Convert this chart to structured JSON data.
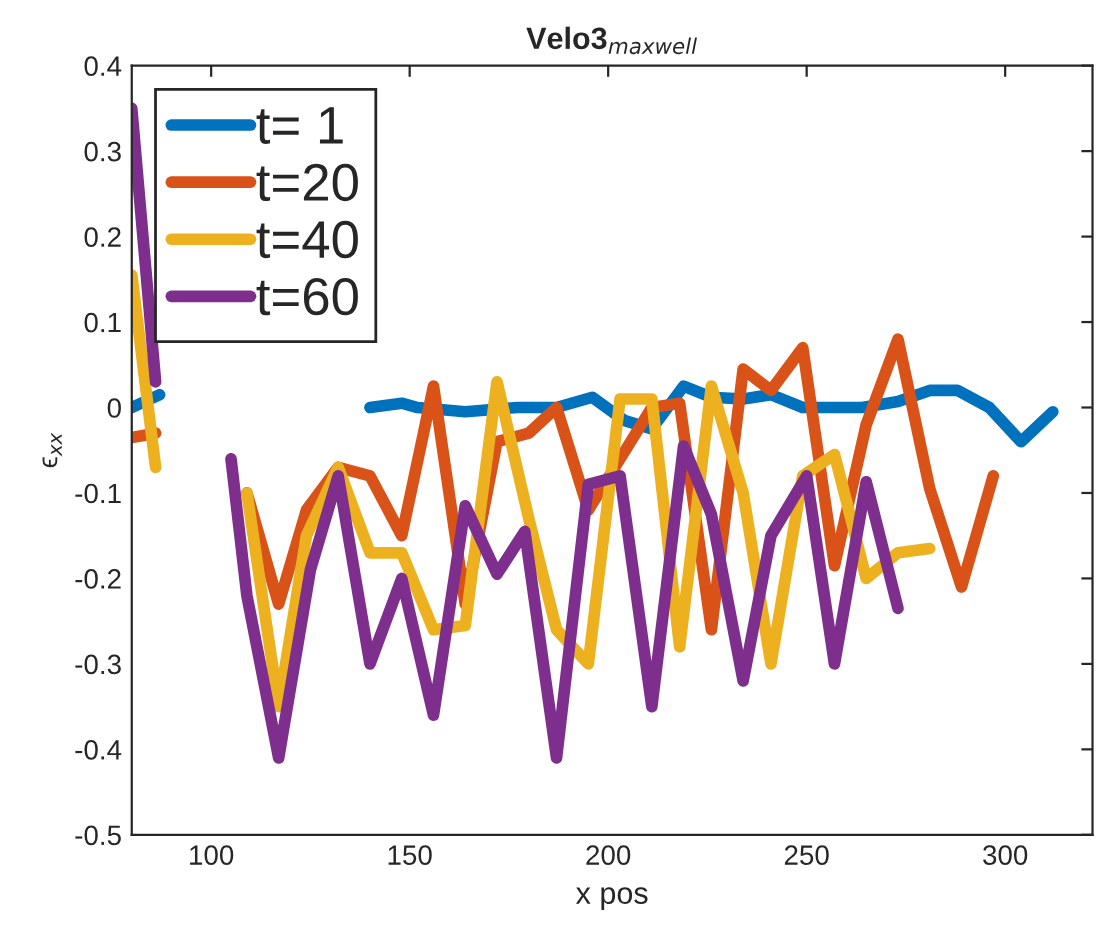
{
  "chart_data": {
    "type": "line",
    "title": "Velo3$_{maxwell}$",
    "xlabel": "x pos",
    "ylabel": "ϵ$_{xx}$",
    "xlim": [
      80,
      322
    ],
    "ylim": [
      -0.5,
      0.4
    ],
    "xticks": [
      100,
      150,
      200,
      250,
      300
    ],
    "yticks": [
      -0.5,
      -0.4,
      -0.3,
      -0.2,
      -0.1,
      0,
      0.1,
      0.2,
      0.3,
      0.4
    ],
    "grid": false,
    "legend": "top left",
    "marker": "none",
    "line_style": "solid",
    "series": [
      {
        "name": "t= 1",
        "color": "#0072bd",
        "x": [
          80,
          87,
          95,
          140,
          148,
          152,
          164,
          177,
          187,
          196,
          204,
          211,
          219,
          226,
          234,
          241,
          249,
          258,
          264,
          273,
          281,
          288,
          296,
          304,
          312
        ],
        "values": [
          0.0,
          0.015,
          null,
          0.0,
          0.005,
          0.0,
          -0.005,
          0.0,
          0.0,
          0.012,
          -0.015,
          -0.025,
          0.025,
          0.012,
          0.01,
          0.015,
          0.0,
          0.0,
          0.0,
          0.007,
          0.02,
          0.02,
          0.0,
          -0.04,
          -0.005
        ]
      },
      {
        "name": "t=20",
        "color": "#d95319",
        "x": [
          80,
          86,
          95,
          109,
          117,
          124,
          132,
          140,
          148,
          156,
          164,
          172,
          180,
          187,
          195,
          203,
          211,
          218,
          226,
          234,
          241,
          249,
          257,
          265,
          273,
          281,
          289,
          297
        ],
        "values": [
          -0.035,
          -0.03,
          null,
          -0.1,
          -0.23,
          -0.12,
          -0.07,
          -0.08,
          -0.15,
          0.025,
          -0.23,
          -0.04,
          -0.03,
          0.0,
          -0.12,
          -0.06,
          0.0,
          0.005,
          -0.26,
          0.045,
          0.02,
          0.07,
          -0.185,
          -0.02,
          0.08,
          -0.095,
          -0.21,
          -0.08
        ]
      },
      {
        "name": "t=40",
        "color": "#edb120",
        "x": [
          80,
          86,
          95,
          109,
          117,
          124,
          132,
          140,
          148,
          156,
          164,
          172,
          180,
          187,
          195,
          203,
          211,
          218,
          226,
          234,
          241,
          249,
          257,
          265,
          273,
          281
        ],
        "values": [
          0.155,
          -0.07,
          null,
          -0.1,
          -0.35,
          -0.15,
          -0.07,
          -0.17,
          -0.17,
          -0.26,
          -0.255,
          0.03,
          -0.13,
          -0.26,
          -0.3,
          0.01,
          0.01,
          -0.28,
          0.025,
          -0.1,
          -0.3,
          -0.08,
          -0.055,
          -0.2,
          -0.17,
          -0.165
        ]
      },
      {
        "name": "t=60",
        "color": "#7e2f8e",
        "x": [
          80,
          86,
          95,
          105,
          109,
          117,
          125,
          132,
          140,
          148,
          156,
          164,
          172,
          179,
          187,
          195,
          203,
          211,
          219,
          226,
          234,
          241,
          250,
          257,
          265,
          273
        ],
        "values": [
          0.35,
          0.03,
          null,
          -0.06,
          -0.22,
          -0.41,
          -0.19,
          -0.08,
          -0.3,
          -0.2,
          -0.36,
          -0.115,
          -0.195,
          -0.145,
          -0.41,
          -0.09,
          -0.08,
          -0.35,
          -0.045,
          -0.125,
          -0.32,
          -0.15,
          -0.08,
          -0.3,
          -0.087,
          -0.235
        ]
      }
    ]
  }
}
